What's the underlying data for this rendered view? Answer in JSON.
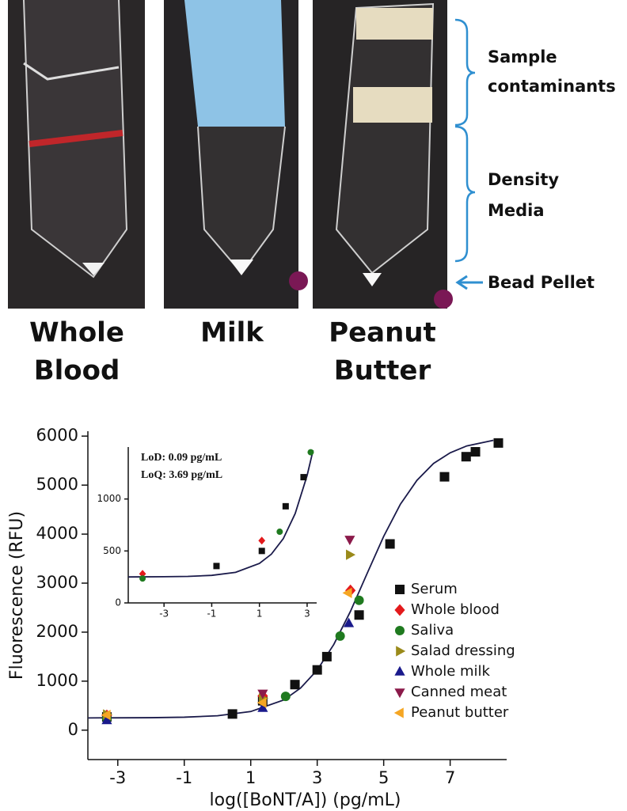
{
  "photo_panel": {
    "panels": [
      {
        "label_lines": [
          "Whole",
          "Blood"
        ]
      },
      {
        "label_lines": [
          "Milk"
        ]
      },
      {
        "label_lines": [
          "Peanut",
          "Butter"
        ]
      }
    ],
    "annotations": [
      {
        "lines": [
          "Sample",
          "contaminants"
        ]
      },
      {
        "lines": [
          "Density",
          "Media"
        ]
      },
      {
        "lines": [
          "Bead Pellet"
        ]
      }
    ]
  },
  "chart_data": [
    {
      "type": "scatter",
      "xlabel": "log([BoNT/A]) (pg/mL)",
      "ylabel": "Fluorescence (RFU)",
      "xlim": [
        -3.9,
        8.7
      ],
      "ylim": [
        -600,
        6100
      ],
      "xticks": [
        -3,
        -1,
        1,
        3,
        5,
        7
      ],
      "yticks": [
        0,
        1000,
        2000,
        3000,
        4000,
        5000,
        6000
      ],
      "legend": "lower right",
      "series": [
        {
          "name": "Serum",
          "color": "#111111",
          "marker": "square",
          "x": [
            -3.33,
            0.45,
            1.36,
            2.33,
            3.0,
            3.29,
            4.26,
            5.19,
            6.83,
            7.48,
            7.76,
            8.45
          ],
          "values": [
            270,
            330,
            600,
            930,
            1230,
            1500,
            2350,
            3800,
            5170,
            5580,
            5680,
            5860
          ]
        },
        {
          "name": "Whole blood",
          "color": "#e31a1c",
          "marker": "diamond",
          "x": [
            -3.33,
            1.36,
            4.0
          ],
          "values": [
            300,
            700,
            2850
          ]
        },
        {
          "name": "Saliva",
          "color": "#1f7a1f",
          "marker": "circle",
          "x": [
            -3.33,
            2.05,
            3.69,
            4.26
          ],
          "values": [
            240,
            690,
            1920,
            2650
          ]
        },
        {
          "name": "Salad dressing",
          "color": "#9a8a1a",
          "marker": "triangle-right",
          "x": [
            -3.33,
            1.36,
            3.98
          ],
          "values": [
            320,
            650,
            3580
          ]
        },
        {
          "name": "Whole milk",
          "color": "#1a1a8c",
          "marker": "triangle-up",
          "x": [
            -3.33,
            1.36,
            3.95
          ],
          "values": [
            200,
            450,
            2180
          ]
        },
        {
          "name": "Canned meat",
          "color": "#8b1a4a",
          "marker": "triangle-down",
          "x": [
            1.36,
            3.98
          ],
          "values": [
            750,
            3890
          ]
        },
        {
          "name": "Peanut butter",
          "color": "#f5a623",
          "marker": "triangle-left",
          "x": [
            -3.33,
            1.36,
            3.93
          ],
          "values": [
            310,
            560,
            2800
          ]
        }
      ],
      "fit": {
        "color": "#1a1a4a",
        "x": [
          -3.9,
          -2,
          -1,
          0,
          1,
          2,
          2.5,
          3,
          3.5,
          4,
          4.5,
          5,
          5.5,
          6,
          6.5,
          7,
          7.5,
          8.3
        ],
        "values": [
          250,
          255,
          265,
          294,
          380,
          618,
          860,
          1227,
          1750,
          2424,
          3195,
          3955,
          4608,
          5097,
          5442,
          5660,
          5800,
          5915
        ]
      }
    },
    {
      "type": "scatter",
      "annotations": [
        "LoD: 0.09 pg/mL",
        "LoQ: 3.69 pg/mL"
      ],
      "xlim": [
        -4.5,
        3.4
      ],
      "ylim": [
        0,
        1500
      ],
      "xticks": [
        -3,
        -1,
        1,
        3
      ],
      "yticks": [
        0,
        500,
        1000
      ],
      "series": [
        {
          "color": "#111111",
          "marker": "square",
          "x": [
            -0.8,
            1.1,
            2.1,
            2.85
          ],
          "values": [
            355,
            500,
            930,
            1210
          ]
        },
        {
          "color": "#e31a1c",
          "marker": "diamond",
          "x": [
            -3.9,
            1.1
          ],
          "values": [
            280,
            600
          ]
        },
        {
          "color": "#1f7a1f",
          "marker": "circle",
          "x": [
            -3.9,
            1.85,
            3.15
          ],
          "values": [
            235,
            685,
            1450
          ]
        }
      ],
      "fit": {
        "color": "#1a1a4a",
        "x": [
          -4.5,
          -3,
          -2,
          -1,
          0,
          1,
          1.5,
          2,
          2.5,
          3,
          3.25
        ],
        "values": [
          250,
          252,
          255,
          265,
          294,
          380,
          469,
          618,
          860,
          1227,
          1469
        ]
      }
    }
  ]
}
